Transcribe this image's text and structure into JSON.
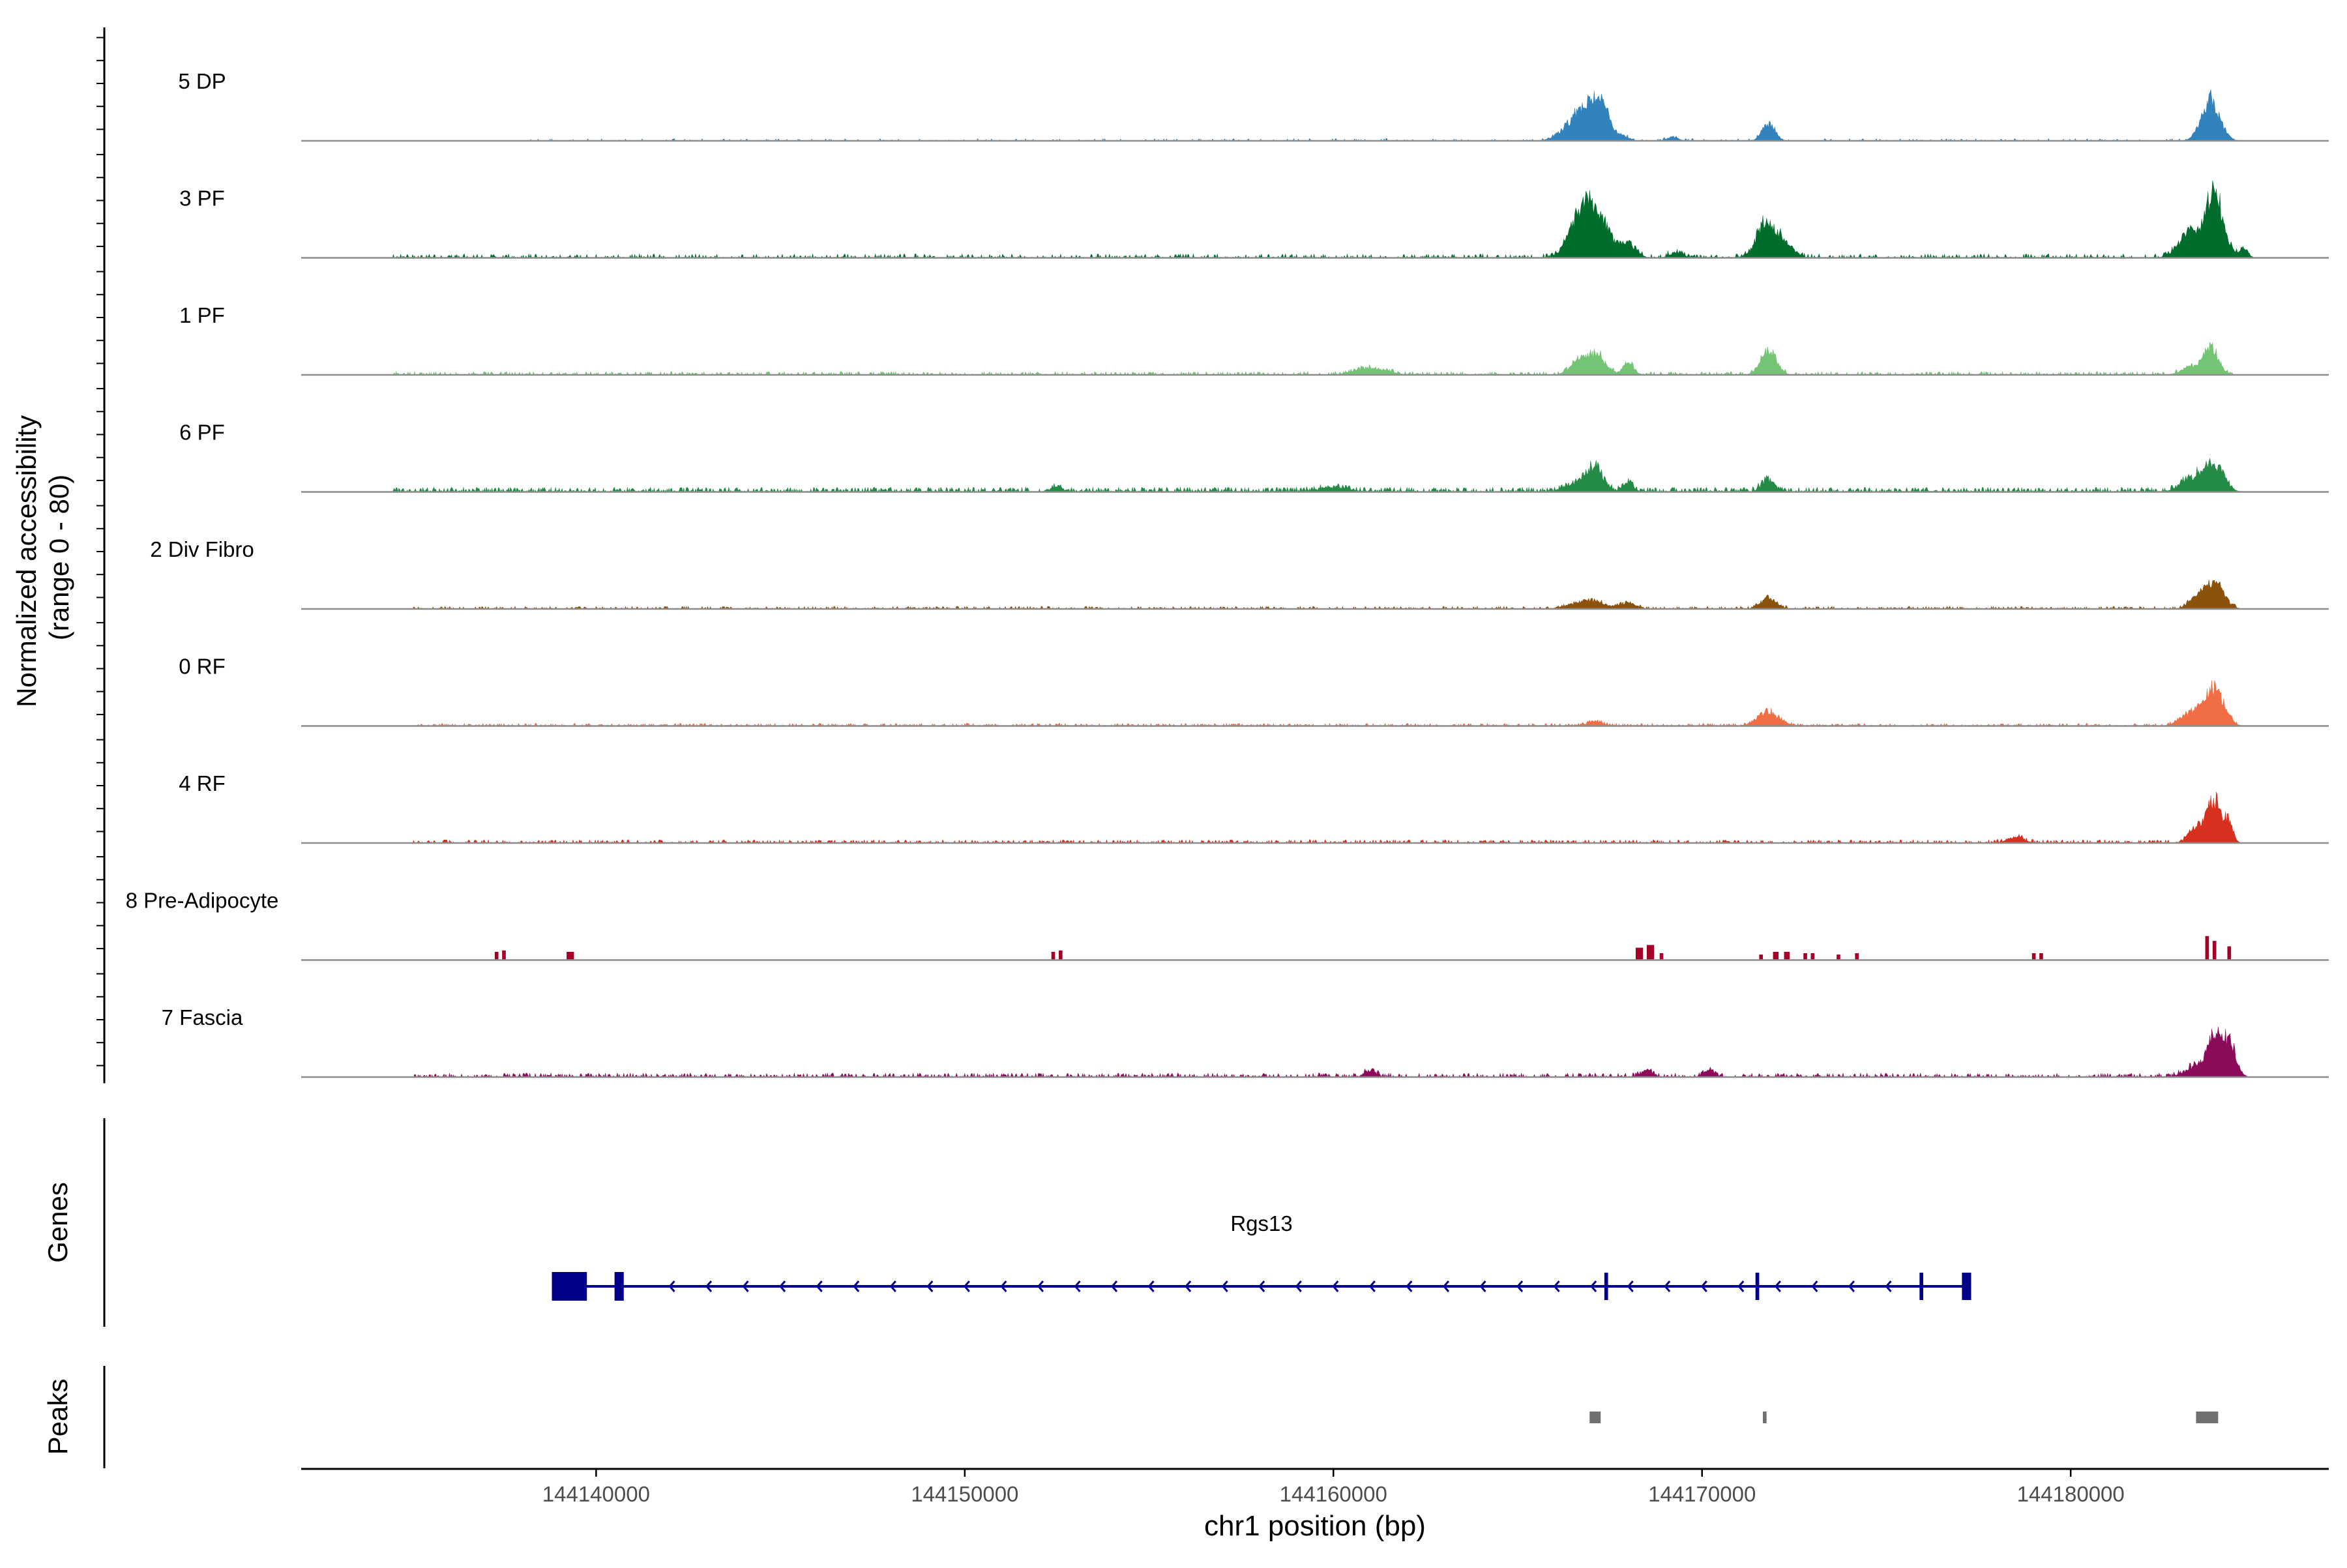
{
  "chart_data": {
    "type": "area",
    "genomic_region": {
      "chromosome": "chr1",
      "start": 144132000,
      "end": 144187000
    },
    "coverage": {
      "ylabel": "Normalized accessibility\n(range 0 - 80)",
      "ylim": [
        0,
        80
      ],
      "tracks": [
        {
          "name": "5 DP",
          "color": "#3182bd",
          "peaks": [
            [
              144166800,
              45,
              600
            ],
            [
              144167250,
              35,
              350
            ],
            [
              144171800,
              25,
              250
            ],
            [
              144183800,
              60,
              350
            ],
            [
              144169200,
              6,
              200
            ],
            [
              144167900,
              5,
              200
            ]
          ],
          "noise": {
            "level": 3.5,
            "density": 0.18,
            "from": 144138000,
            "to": 144184500
          }
        },
        {
          "name": "3 PF",
          "color": "#006d2c",
          "peaks": [
            [
              144167100,
              65,
              500
            ],
            [
              144166600,
              40,
              400
            ],
            [
              144168000,
              18,
              300
            ],
            [
              144169300,
              8,
              250
            ],
            [
              144171800,
              55,
              400
            ],
            [
              144172400,
              12,
              250
            ],
            [
              144183900,
              95,
              350
            ],
            [
              144183200,
              35,
              400
            ],
            [
              144184700,
              15,
              150
            ]
          ],
          "noise": {
            "level": 6,
            "density": 0.4,
            "from": 144134500,
            "to": 144184500
          }
        },
        {
          "name": "1 PF",
          "color": "#74c476",
          "peaks": [
            [
              144167100,
              30,
              350
            ],
            [
              144166600,
              18,
              300
            ],
            [
              144168000,
              20,
              200
            ],
            [
              144171800,
              35,
              300
            ],
            [
              144161000,
              10,
              600
            ],
            [
              144183800,
              40,
              300
            ],
            [
              144183200,
              10,
              300
            ]
          ],
          "noise": {
            "level": 5,
            "density": 0.5,
            "from": 144134500,
            "to": 144184500
          }
        },
        {
          "name": "6 PF",
          "color": "#238b45",
          "peaks": [
            [
              144167100,
              35,
              300
            ],
            [
              144166600,
              12,
              400
            ],
            [
              144168000,
              12,
              200
            ],
            [
              144171800,
              18,
              250
            ],
            [
              144183900,
              40,
              350
            ],
            [
              144183300,
              20,
              400
            ],
            [
              144152500,
              8,
              200
            ],
            [
              144160000,
              6,
              600
            ]
          ],
          "noise": {
            "level": 7,
            "density": 0.65,
            "from": 144134500,
            "to": 144184500
          }
        },
        {
          "name": "2 Div Fibro",
          "color": "#8c510a",
          "peaks": [
            [
              144166900,
              12,
              600
            ],
            [
              144168000,
              8,
              300
            ],
            [
              144171800,
              15,
              300
            ],
            [
              144183900,
              40,
              350
            ],
            [
              144183400,
              15,
              300
            ]
          ],
          "noise": {
            "level": 4,
            "density": 0.45,
            "from": 144135000,
            "to": 144184500
          }
        },
        {
          "name": "0 RF",
          "color": "#f16d43",
          "peaks": [
            [
              144171800,
              20,
              400
            ],
            [
              144183900,
              55,
              350
            ],
            [
              144183300,
              20,
              400
            ],
            [
              144167100,
              6,
              300
            ]
          ],
          "noise": {
            "level": 4,
            "density": 0.5,
            "from": 144135000,
            "to": 144184500
          }
        },
        {
          "name": "4 RF",
          "color": "#d7301f",
          "peaks": [
            [
              144183900,
              60,
              300
            ],
            [
              144183400,
              20,
              300
            ],
            [
              144184300,
              25,
              150
            ],
            [
              144178500,
              8,
              300
            ]
          ],
          "noise": {
            "level": 5,
            "density": 0.55,
            "from": 144135000,
            "to": 144184500
          }
        },
        {
          "name": "8 Pre-Adipocyte",
          "color": "#a50026",
          "bars": [
            [
              144137300,
              12,
              100
            ],
            [
              144137500,
              14,
              100
            ],
            [
              144139300,
              12,
              200
            ],
            [
              144152400,
              12,
              100
            ],
            [
              144152600,
              14,
              100
            ],
            [
              144168300,
              18,
              200
            ],
            [
              144168600,
              22,
              200
            ],
            [
              144168900,
              10,
              100
            ],
            [
              144171600,
              8,
              100
            ],
            [
              144172000,
              12,
              150
            ],
            [
              144172300,
              12,
              150
            ],
            [
              144172800,
              10,
              100
            ],
            [
              144173000,
              10,
              100
            ],
            [
              144173700,
              8,
              100
            ],
            [
              144174200,
              10,
              100
            ],
            [
              144179000,
              10,
              100
            ],
            [
              144179200,
              10,
              100
            ],
            [
              144183700,
              35,
              100
            ],
            [
              144183900,
              28,
              100
            ],
            [
              144184300,
              20,
              100
            ]
          ]
        },
        {
          "name": "7 Fascia",
          "color": "#8c0a5a",
          "peaks": [
            [
              144183900,
              60,
              250
            ],
            [
              144184300,
              50,
              250
            ],
            [
              144183400,
              15,
              400
            ],
            [
              144161000,
              10,
              200
            ],
            [
              144168500,
              10,
              200
            ],
            [
              144170200,
              9,
              200
            ]
          ],
          "noise": {
            "level": 6,
            "density": 0.5,
            "from": 144135000,
            "to": 144184500
          }
        }
      ]
    },
    "genes": {
      "label": "Genes",
      "items": [
        {
          "name": "Rgs13",
          "strand": "-",
          "start": 144138800,
          "end": 144177300,
          "color": "#00008b",
          "exons": [
            [
              144138800,
              144139750
            ],
            [
              144140500,
              144140750
            ],
            [
              144167350,
              144167450
            ],
            [
              144171450,
              144171550
            ],
            [
              144175900,
              144176000
            ],
            [
              144177050,
              144177300
            ]
          ]
        }
      ]
    },
    "peaks": {
      "label": "Peaks",
      "color": "#707070",
      "regions": [
        [
          144166950,
          144167250
        ],
        [
          144171650,
          144171750
        ],
        [
          144183400,
          144184000
        ]
      ]
    },
    "x_axis": {
      "label": "chr1 position (bp)",
      "ticks": [
        144140000,
        144150000,
        144160000,
        144170000,
        144180000
      ],
      "tick_labels": [
        "144140000",
        "144150000",
        "144160000",
        "144170000",
        "144180000"
      ]
    }
  }
}
